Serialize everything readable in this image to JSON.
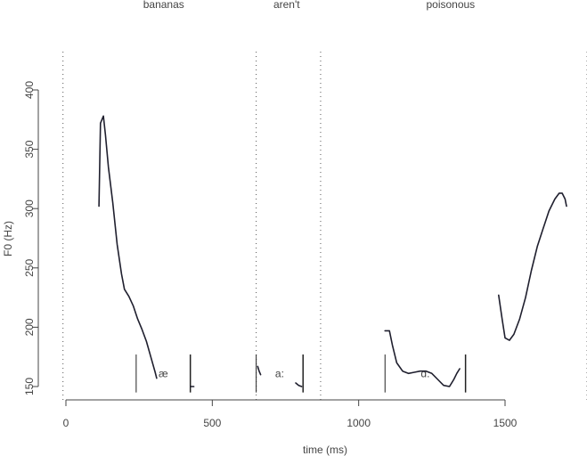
{
  "chart_data": {
    "type": "line",
    "title": "",
    "xlabel": "time (ms)",
    "ylabel": "F0 (Hz)",
    "xlim": [
      -10,
      1780
    ],
    "ylim": [
      145,
      410
    ],
    "x_ticks": [
      0,
      500,
      1000,
      1500
    ],
    "y_ticks": [
      150,
      200,
      250,
      300,
      350,
      400
    ],
    "grid": false,
    "word_labels": [
      {
        "text": "bananas",
        "x": 340
      },
      {
        "text": "aren't",
        "x": 760
      },
      {
        "text": "poisonous",
        "x": 1320
      }
    ],
    "word_boundaries": [
      -10,
      650,
      870,
      1780
    ],
    "segments": [
      {
        "symbol": "æ",
        "start": 240,
        "end": 425
      },
      {
        "symbol": "a:",
        "start": 650,
        "end": 810
      },
      {
        "symbol": "ɑ:",
        "start": 1090,
        "end": 1365
      }
    ],
    "series": [
      {
        "points": [
          [
            113,
            302
          ],
          [
            118,
            372
          ],
          [
            128,
            378
          ],
          [
            135,
            362
          ],
          [
            145,
            335
          ],
          [
            160,
            305
          ],
          [
            175,
            270
          ],
          [
            190,
            245
          ],
          [
            200,
            232
          ],
          [
            215,
            226
          ],
          [
            230,
            218
          ],
          [
            245,
            207
          ],
          [
            260,
            198
          ],
          [
            275,
            188
          ],
          [
            290,
            175
          ],
          [
            305,
            162
          ],
          [
            310,
            157
          ]
        ]
      },
      {
        "points": [
          [
            425,
            150
          ],
          [
            437,
            150
          ]
        ]
      },
      {
        "points": [
          [
            655,
            167
          ],
          [
            660,
            163
          ],
          [
            665,
            160
          ]
        ]
      },
      {
        "points": [
          [
            785,
            153
          ],
          [
            795,
            151
          ],
          [
            805,
            150
          ]
        ]
      },
      {
        "points": [
          [
            1090,
            197
          ],
          [
            1105,
            197
          ],
          [
            1115,
            185
          ],
          [
            1130,
            170
          ],
          [
            1150,
            163
          ],
          [
            1170,
            161
          ],
          [
            1190,
            162
          ],
          [
            1210,
            163
          ],
          [
            1230,
            163
          ],
          [
            1250,
            161
          ],
          [
            1270,
            156
          ],
          [
            1290,
            151
          ],
          [
            1310,
            150
          ],
          [
            1325,
            156
          ],
          [
            1335,
            161
          ],
          [
            1345,
            165
          ]
        ]
      },
      {
        "points": [
          [
            1478,
            227
          ],
          [
            1490,
            207
          ],
          [
            1500,
            191
          ],
          [
            1515,
            189
          ],
          [
            1530,
            194
          ],
          [
            1550,
            207
          ],
          [
            1570,
            225
          ],
          [
            1590,
            248
          ],
          [
            1610,
            268
          ],
          [
            1630,
            283
          ],
          [
            1650,
            298
          ],
          [
            1670,
            308
          ],
          [
            1685,
            313
          ],
          [
            1695,
            313
          ],
          [
            1705,
            308
          ],
          [
            1710,
            302
          ]
        ]
      }
    ],
    "segment_tick_range": [
      145,
      177
    ],
    "colors": {
      "line": "#1f1f2e",
      "axis": "#444444",
      "boundary": "#555555"
    }
  }
}
